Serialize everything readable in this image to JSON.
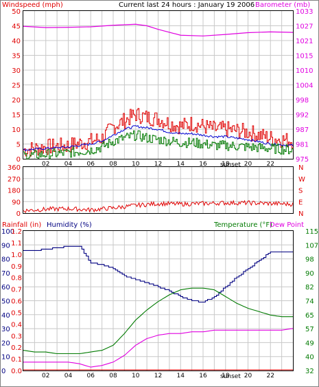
{
  "colors": {
    "background": "#ffffff",
    "plot_bg": "#ffffff",
    "grid": "#c8c8c8",
    "wind_gust": "#e00000",
    "wind_avg": "#007a00",
    "wind_mean": "#0000d0",
    "barometer": "#e000e0",
    "direction": "#e00000",
    "humidity": "#000080",
    "temperature": "#007a00",
    "dew_point": "#e000e0",
    "rainfall": "#e00000",
    "text_red": "#e00000",
    "text_magenta": "#e000e0",
    "text_blue": "#000080",
    "text_green": "#007a00"
  },
  "chart_data": [
    {
      "type": "line",
      "title": "Current last 24 hours : January 19 2006",
      "y_left_label": "Windspeed (mph)",
      "y_right_label": "Barometer (mb)",
      "y_left_ticks": [
        "0",
        "5",
        "10",
        "15",
        "20",
        "25",
        "30",
        "35",
        "40",
        "45",
        "50"
      ],
      "y_right_ticks": [
        "975",
        "981",
        "987",
        "992",
        "998",
        "1004",
        "1010",
        "1015",
        "1021",
        "1027",
        "1033"
      ],
      "x_ticks": [
        "02",
        "04",
        "06",
        "08",
        "10",
        "12",
        "14",
        "16",
        "18",
        "20",
        "22"
      ],
      "x_note": "sunset",
      "ylim_left": [
        0,
        50
      ],
      "ylim_right": [
        975,
        1033
      ],
      "xlim": [
        0,
        24
      ],
      "series": [
        {
          "role": "barometer",
          "x": [
            0,
            2,
            4,
            6,
            8,
            10,
            11,
            12,
            14,
            16,
            18,
            20,
            22,
            24
          ],
          "values": [
            1027,
            1026.5,
            1026.6,
            1026.8,
            1027.4,
            1027.8,
            1027.2,
            1025.8,
            1023.5,
            1023.2,
            1023.8,
            1024.5,
            1024.8,
            1024.6
          ]
        },
        {
          "role": "wind_gust",
          "x": [
            0,
            2,
            4,
            6,
            7,
            8,
            9,
            10,
            11,
            12,
            13,
            14,
            15,
            16,
            17,
            18,
            20,
            22,
            24
          ],
          "values": [
            3,
            4,
            4.5,
            6,
            7,
            11,
            13,
            15,
            14,
            13.5,
            12,
            11,
            12,
            11,
            10,
            10,
            9,
            7,
            6
          ]
        },
        {
          "role": "wind_mean",
          "x": [
            0,
            2,
            4,
            6,
            7,
            8,
            9,
            10,
            11,
            12,
            13,
            14,
            15,
            16,
            17,
            18,
            20,
            22,
            24
          ],
          "values": [
            3,
            3.5,
            4,
            5,
            6,
            8,
            10,
            11,
            10.5,
            10,
            9,
            8.5,
            8.5,
            8,
            7.5,
            7.5,
            6.5,
            5,
            4.5
          ]
        },
        {
          "role": "wind_avg",
          "x": [
            0,
            2,
            4,
            6,
            7,
            8,
            9,
            10,
            11,
            12,
            13,
            14,
            15,
            16,
            17,
            18,
            20,
            22,
            24
          ],
          "values": [
            1,
            1.5,
            2,
            3,
            4,
            6,
            7,
            8,
            7,
            6.5,
            6,
            5.5,
            5.5,
            5,
            4.5,
            4.5,
            4,
            3.5,
            3
          ]
        }
      ]
    },
    {
      "type": "line",
      "y_left_ticks": [
        "360",
        "270",
        "180",
        "90",
        "0"
      ],
      "y_right_ticks": [
        "N",
        "W",
        "S",
        "E",
        "N"
      ],
      "ylim": [
        0,
        360
      ],
      "xlim": [
        0,
        24
      ],
      "series": [
        {
          "role": "direction",
          "x": [
            0,
            2,
            4,
            6,
            8,
            10,
            12,
            14,
            16,
            18,
            20,
            22,
            24
          ],
          "values": [
            20,
            30,
            35,
            25,
            40,
            60,
            75,
            70,
            75,
            80,
            80,
            75,
            70
          ]
        }
      ]
    },
    {
      "type": "line",
      "y_left_label_1": "Rainfall (in)",
      "y_left_label_2": "Humidity (%)",
      "y_right_label_1": "Temperature (°F)",
      "y_right_label_2": "Dew Point",
      "y_left_ticks_humidity": [
        "0",
        "10",
        "20",
        "30",
        "40",
        "50",
        "60",
        "70",
        "80",
        "90",
        "100"
      ],
      "y_left_ticks_rain": [
        "0.0",
        "0.1",
        "0.2",
        "0.3",
        "0.4",
        "0.5",
        "0.6",
        "0.7",
        "0.8",
        "0.9",
        "1.0",
        "1.1",
        "1.2"
      ],
      "y_right_ticks": [
        "32",
        "40",
        "49",
        "57",
        "65",
        "74",
        "82",
        "90",
        "98",
        "107",
        "115"
      ],
      "x_ticks": [
        "02",
        "04",
        "06",
        "08",
        "10",
        "12",
        "14",
        "16",
        "18",
        "20",
        "22"
      ],
      "x_note": "sunset",
      "ylim_humidity": [
        0,
        100
      ],
      "ylim_temp": [
        32,
        115
      ],
      "xlim": [
        0,
        24
      ],
      "series": [
        {
          "role": "humidity",
          "x": [
            0,
            1,
            2,
            3,
            4,
            5,
            5.5,
            6,
            7,
            8,
            9,
            10,
            11,
            12,
            13,
            14,
            15,
            16,
            17,
            18,
            19,
            20,
            21,
            22,
            23,
            24
          ],
          "values": [
            86,
            86,
            87,
            88,
            89,
            89,
            83,
            77,
            76,
            73,
            68,
            65,
            63,
            60,
            57,
            53,
            50,
            49,
            53,
            60,
            67,
            73,
            79,
            85,
            85,
            85
          ]
        },
        {
          "role": "temperature",
          "x": [
            0,
            1,
            2,
            3,
            4,
            5,
            6,
            7,
            8,
            9,
            10,
            11,
            12,
            13,
            14,
            15,
            16,
            17,
            18,
            19,
            20,
            21,
            22,
            23,
            24
          ],
          "values": [
            44,
            43,
            43,
            42,
            42,
            42,
            43,
            44,
            47,
            54,
            62,
            68,
            73,
            77,
            80,
            81,
            81,
            80,
            76,
            72,
            69,
            67,
            65,
            64,
            64
          ]
        },
        {
          "role": "dew_point",
          "x": [
            0,
            1,
            2,
            3,
            4,
            5,
            6,
            7,
            8,
            9,
            10,
            11,
            12,
            13,
            14,
            15,
            16,
            17,
            18,
            19,
            20,
            21,
            22,
            23,
            24
          ],
          "values": [
            37,
            37,
            37,
            37,
            37,
            36,
            34,
            35,
            37,
            41,
            47,
            51,
            53,
            54,
            54,
            55,
            55,
            56,
            56,
            56,
            56,
            56,
            56,
            56,
            57
          ]
        },
        {
          "role": "rainfall",
          "x": [
            0,
            24
          ],
          "values": [
            0,
            0
          ]
        }
      ]
    }
  ]
}
